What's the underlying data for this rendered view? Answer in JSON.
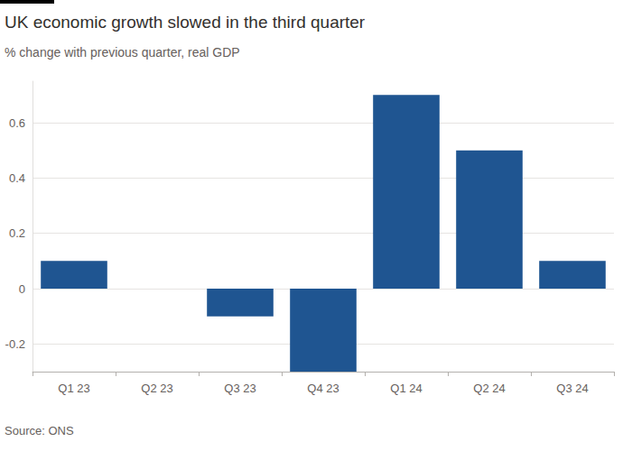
{
  "chart_data": {
    "type": "bar",
    "title": "UK economic growth slowed in the third quarter",
    "subtitle": "% change with previous quarter, real GDP",
    "source": "Source: ONS",
    "categories": [
      "Q1 23",
      "Q2 23",
      "Q3 23",
      "Q4 23",
      "Q1 24",
      "Q2 24",
      "Q3 24"
    ],
    "values": [
      0.1,
      0,
      -0.1,
      -0.3,
      0.7,
      0.5,
      0.1
    ],
    "color": "#1f5591",
    "ylim": [
      -0.3,
      0.75
    ],
    "yticks": [
      -0.2,
      0,
      0.2,
      0.4,
      0.6
    ],
    "grid": true
  }
}
